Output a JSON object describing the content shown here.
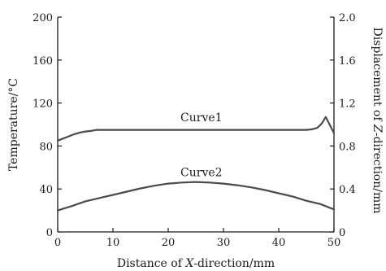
{
  "chart_data": {
    "type": "line",
    "xlabel": {
      "pre": "Distance of ",
      "var": "X",
      "post": "-direction/mm"
    },
    "ylabel": "Temperature/°C",
    "y2label": {
      "pre": "Displacement of ",
      "var": "Z",
      "post": "-direction/mm"
    },
    "xlim": [
      0,
      50
    ],
    "ylim": [
      0,
      200
    ],
    "y2lim": [
      0,
      2.0
    ],
    "xticks": [
      "0",
      "10",
      "20",
      "30",
      "40",
      "50"
    ],
    "yticks": [
      "0",
      "40",
      "80",
      "120",
      "160",
      "200"
    ],
    "y2ticks": [
      "0",
      "0.4",
      "0.8",
      "1.2",
      "1.6",
      "2.0"
    ],
    "grid": false,
    "series": [
      {
        "name": "Curve1",
        "axis": "left",
        "x": [
          0,
          1,
          2,
          3,
          4,
          5,
          6,
          7,
          10,
          15,
          20,
          25,
          30,
          35,
          40,
          45,
          46,
          47,
          47.8,
          48.5,
          49.2,
          50
        ],
        "y": [
          85,
          87,
          89,
          91,
          92.5,
          93.5,
          94,
          95,
          95,
          95,
          95,
          95,
          95,
          95,
          95,
          95,
          95.5,
          97,
          101,
          107,
          100,
          92
        ]
      },
      {
        "name": "Curve2",
        "axis": "left",
        "x": [
          0,
          2.5,
          5,
          7.5,
          10,
          12.5,
          15,
          17.5,
          20,
          22.5,
          25,
          27.5,
          30,
          32.5,
          35,
          37.5,
          40,
          42.5,
          45,
          47.5,
          50
        ],
        "y": [
          20,
          24,
          28.5,
          31.5,
          34.5,
          37.5,
          40.5,
          43,
          45,
          46,
          46.5,
          46,
          45,
          43.5,
          41.5,
          39,
          36,
          33,
          29,
          26,
          21
        ]
      }
    ],
    "curve_labels": [
      {
        "text": "Curve1",
        "x": 26,
        "y": 103
      },
      {
        "text": "Curve2",
        "x": 26,
        "y": 52
      }
    ]
  }
}
